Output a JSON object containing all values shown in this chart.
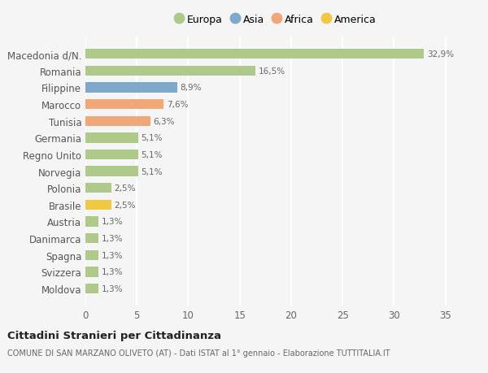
{
  "categories": [
    "Moldova",
    "Svizzera",
    "Spagna",
    "Danimarca",
    "Austria",
    "Brasile",
    "Polonia",
    "Norvegia",
    "Regno Unito",
    "Germania",
    "Tunisia",
    "Marocco",
    "Filippine",
    "Romania",
    "Macedonia d/N."
  ],
  "values": [
    1.3,
    1.3,
    1.3,
    1.3,
    1.3,
    2.5,
    2.5,
    5.1,
    5.1,
    5.1,
    6.3,
    7.6,
    8.9,
    16.5,
    32.9
  ],
  "labels": [
    "1,3%",
    "1,3%",
    "1,3%",
    "1,3%",
    "1,3%",
    "2,5%",
    "2,5%",
    "5,1%",
    "5,1%",
    "5,1%",
    "6,3%",
    "7,6%",
    "8,9%",
    "16,5%",
    "32,9%"
  ],
  "colors": [
    "#aec98a",
    "#aec98a",
    "#aec98a",
    "#aec98a",
    "#aec98a",
    "#f0c842",
    "#aec98a",
    "#aec98a",
    "#aec98a",
    "#aec98a",
    "#f0a878",
    "#f0a878",
    "#7ea8cc",
    "#aec98a",
    "#aec98a"
  ],
  "legend_labels": [
    "Europa",
    "Asia",
    "Africa",
    "America"
  ],
  "legend_colors": [
    "#aec98a",
    "#7ea8cc",
    "#f0a878",
    "#f0c842"
  ],
  "title": "Cittadini Stranieri per Cittadinanza",
  "subtitle": "COMUNE DI SAN MARZANO OLIVETO (AT) - Dati ISTAT al 1° gennaio - Elaborazione TUTTITALIA.IT",
  "xlim": [
    0,
    37
  ],
  "xticks": [
    0,
    5,
    10,
    15,
    20,
    25,
    30,
    35
  ],
  "background_color": "#f5f5f5",
  "grid_color": "#ffffff",
  "bar_height": 0.6
}
